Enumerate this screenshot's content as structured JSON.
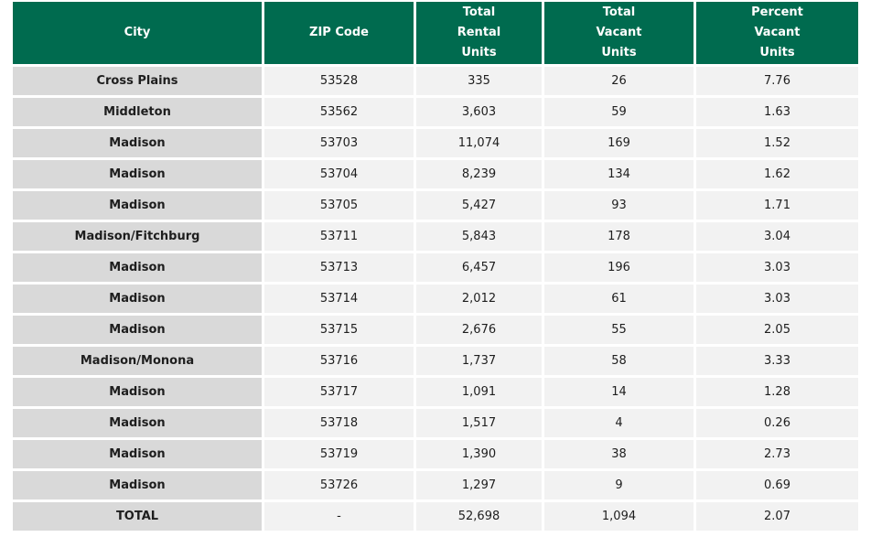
{
  "table": {
    "headers": [
      "City",
      "ZIP Code",
      "Total\nRental\nUnits",
      "Total\nVacant\nUnits",
      "Percent\nVacant\nUnits"
    ],
    "rows": [
      [
        "Cross Plains",
        "53528",
        "335",
        "26",
        "7.76"
      ],
      [
        "Middleton",
        "53562",
        "3,603",
        "59",
        "1.63"
      ],
      [
        "Madison",
        "53703",
        "11,074",
        "169",
        "1.52"
      ],
      [
        "Madison",
        "53704",
        "8,239",
        "134",
        "1.62"
      ],
      [
        "Madison",
        "53705",
        "5,427",
        "93",
        "1.71"
      ],
      [
        "Madison/Fitchburg",
        "53711",
        "5,843",
        "178",
        "3.04"
      ],
      [
        "Madison",
        "53713",
        "6,457",
        "196",
        "3.03"
      ],
      [
        "Madison",
        "53714",
        "2,012",
        "61",
        "3.03"
      ],
      [
        "Madison",
        "53715",
        "2,676",
        "55",
        "2.05"
      ],
      [
        "Madison/Monona",
        "53716",
        "1,737",
        "58",
        "3.33"
      ],
      [
        "Madison",
        "53717",
        "1,091",
        "14",
        "1.28"
      ],
      [
        "Madison",
        "53718",
        "1,517",
        "4",
        "0.26"
      ],
      [
        "Madison",
        "53719",
        "1,390",
        "38",
        "2.73"
      ],
      [
        "Madison",
        "53726",
        "1,297",
        "9",
        "0.69"
      ]
    ],
    "total": [
      "TOTAL",
      "-",
      "52,698",
      "1,094",
      "2.07"
    ]
  },
  "colors": {
    "header_bg": "#006b4f",
    "header_text": "#ffffff",
    "city_cell_bg": "#d9d9d9",
    "data_cell_bg": "#f2f2f2"
  }
}
